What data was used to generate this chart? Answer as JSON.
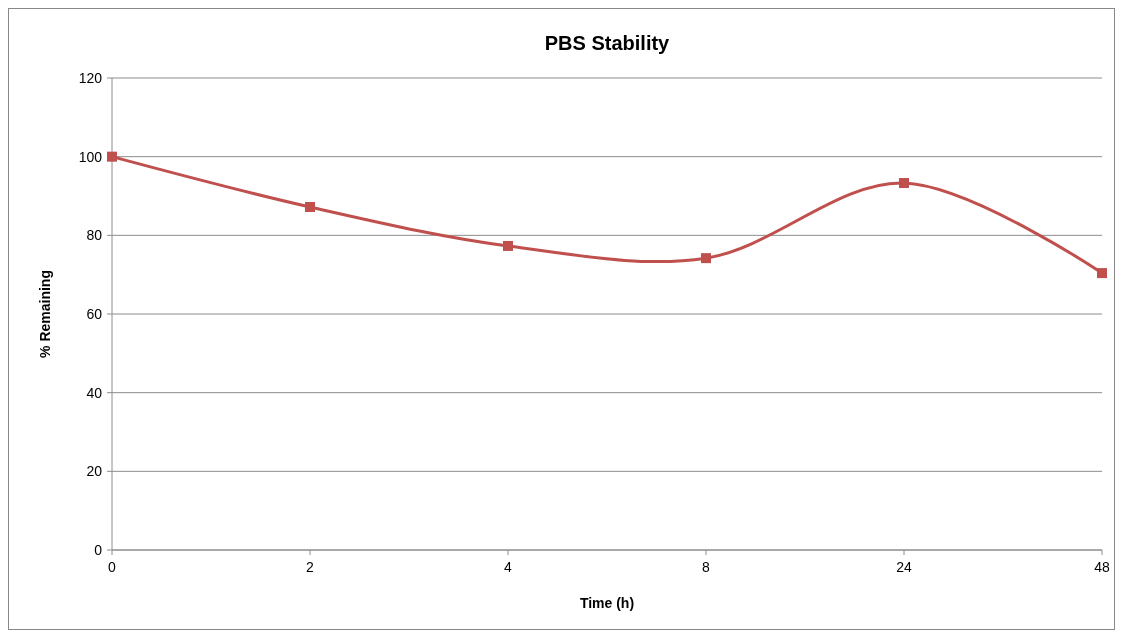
{
  "chart_data": {
    "type": "line",
    "title": "PBS Stability",
    "xlabel": "Time (h)",
    "ylabel": "% Remaining",
    "categories": [
      "0",
      "2",
      "4",
      "8",
      "24",
      "48"
    ],
    "series": [
      {
        "color": "#c0504d",
        "values": [
          100,
          87.2,
          77.3,
          74.2,
          93.3,
          70.4
        ]
      }
    ],
    "ylim": [
      0,
      120
    ],
    "yticks": [
      0,
      20,
      40,
      60,
      80,
      100,
      120
    ],
    "grid": "y",
    "marker": "square",
    "line_style": "solid"
  }
}
